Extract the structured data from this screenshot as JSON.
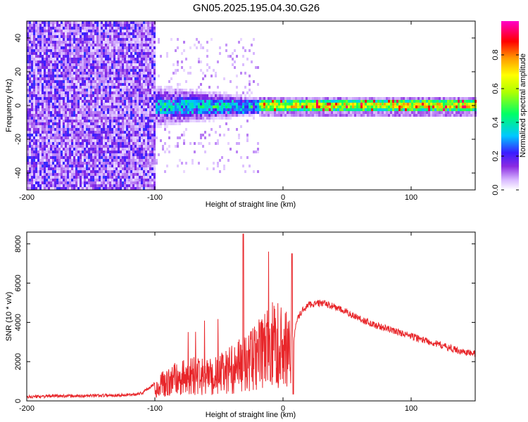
{
  "title": "GN05.2025.195.04.30.G26",
  "colors": {
    "snr_line": "#e8262a",
    "axis": "#000000",
    "colormap": [
      "#ffffff",
      "#d8b8ff",
      "#8a2be2",
      "#3a1cff",
      "#00c8ff",
      "#00ff66",
      "#b0ff00",
      "#ffff00",
      "#ff9a00",
      "#ff0000",
      "#ff00c8"
    ]
  },
  "chart_data": [
    {
      "type": "heatmap",
      "name": "spectrogram",
      "xlabel": "Height of straight line (km)",
      "ylabel": "Frequency (Hz)",
      "xlim": [
        -200,
        150
      ],
      "ylim": [
        -50,
        50
      ],
      "xticks": [
        "-200",
        "-100",
        "0",
        "100"
      ],
      "yticks": [
        "-40",
        "-20",
        "0",
        "20",
        "40"
      ],
      "colorbar": {
        "label": "Normalized spectral amplitude",
        "range": [
          0,
          1
        ],
        "ticks": [
          "0.0",
          "0.2",
          "0.4",
          "0.6",
          "0.8"
        ]
      },
      "regions": [
        {
          "x_range": [
            -200,
            -100
          ],
          "description_level": "broadband noise",
          "amplitude": 0.2
        },
        {
          "x_range": [
            -100,
            -20
          ],
          "center_freq": 0,
          "spread": 10,
          "amplitude": 0.35
        },
        {
          "x_range": [
            -20,
            150
          ],
          "center_freq": 1,
          "spread": 2,
          "amplitude": 0.6
        }
      ]
    },
    {
      "type": "line",
      "name": "snr",
      "xlabel": "Height of straight line (km)",
      "ylabel": "SNR (10 * v/v)",
      "xlim": [
        -200,
        150
      ],
      "ylim": [
        0,
        8600
      ],
      "xticks": [
        "-200",
        "-100",
        "0",
        "100"
      ],
      "yticks": [
        "0",
        "2000",
        "4000",
        "6000",
        "8000"
      ],
      "series": [
        {
          "x": [
            -200,
            -180,
            -160,
            -140,
            -120,
            -110,
            -100,
            -90,
            -80,
            -70,
            -60,
            -50,
            -40,
            -30,
            -25,
            -20,
            -15,
            -10,
            -5,
            0,
            5,
            8,
            10,
            15,
            20,
            30,
            40,
            50,
            60,
            70,
            80,
            90,
            100,
            110,
            120,
            130,
            140,
            150
          ],
          "values": [
            200,
            250,
            250,
            280,
            300,
            400,
            900,
            1400,
            1700,
            1800,
            1700,
            1900,
            2300,
            2700,
            2900,
            3300,
            3600,
            4000,
            4200,
            3900,
            3500,
            2800,
            4000,
            4600,
            4900,
            5000,
            4800,
            4500,
            4200,
            3900,
            3700,
            3500,
            3300,
            3100,
            2900,
            2700,
            2500,
            2400
          ]
        }
      ]
    }
  ]
}
